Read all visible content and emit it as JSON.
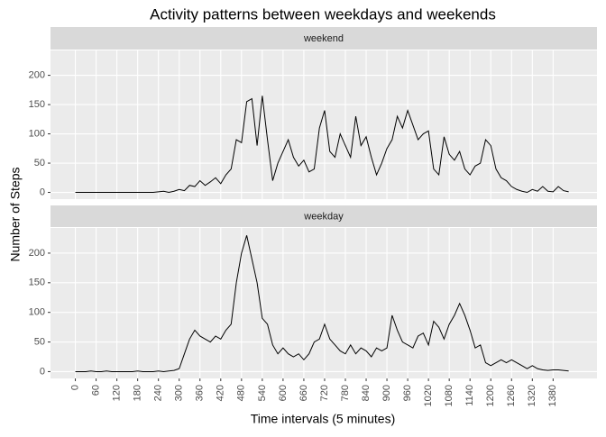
{
  "chart_data": {
    "type": "line",
    "title": "Activity patterns between weekdays and weekends",
    "x_label": "Time intervals (5 minutes)",
    "y_label": "Number of Steps",
    "color": "#000000",
    "grid": true,
    "xlim": [
      -71.75,
      1506.75
    ],
    "xticks": [
      0,
      60,
      120,
      180,
      240,
      300,
      360,
      420,
      480,
      540,
      600,
      660,
      720,
      780,
      840,
      900,
      960,
      1020,
      1080,
      1140,
      1200,
      1260,
      1320,
      1380
    ],
    "ylim": [
      -11.5,
      242.5
    ],
    "yticks": [
      0,
      50,
      100,
      150,
      200
    ],
    "x": [
      0,
      15,
      30,
      45,
      60,
      75,
      90,
      105,
      120,
      135,
      150,
      165,
      180,
      195,
      210,
      225,
      240,
      255,
      270,
      285,
      300,
      315,
      330,
      345,
      360,
      375,
      390,
      405,
      420,
      435,
      450,
      465,
      480,
      495,
      510,
      525,
      540,
      555,
      570,
      585,
      600,
      615,
      630,
      645,
      660,
      675,
      690,
      705,
      720,
      735,
      750,
      765,
      780,
      795,
      810,
      825,
      840,
      855,
      870,
      885,
      900,
      915,
      930,
      945,
      960,
      975,
      990,
      1005,
      1020,
      1035,
      1050,
      1065,
      1080,
      1095,
      1110,
      1125,
      1140,
      1155,
      1170,
      1185,
      1200,
      1215,
      1230,
      1245,
      1260,
      1275,
      1290,
      1305,
      1320,
      1335,
      1350,
      1365,
      1380,
      1395,
      1410,
      1425
    ],
    "facets": [
      {
        "label": "weekend",
        "values": [
          0,
          0,
          0,
          0,
          0,
          0,
          0,
          0,
          0,
          0,
          0,
          0,
          0,
          0,
          0,
          0,
          1,
          2,
          0,
          2,
          5,
          3,
          12,
          10,
          20,
          12,
          18,
          25,
          15,
          30,
          40,
          90,
          85,
          155,
          160,
          80,
          165,
          90,
          20,
          50,
          70,
          90,
          60,
          45,
          55,
          35,
          40,
          110,
          140,
          70,
          60,
          100,
          80,
          60,
          130,
          80,
          95,
          60,
          30,
          50,
          75,
          90,
          130,
          110,
          140,
          115,
          90,
          100,
          105,
          40,
          30,
          95,
          65,
          55,
          70,
          40,
          30,
          45,
          50,
          90,
          80,
          40,
          25,
          20,
          10,
          5,
          2,
          0,
          5,
          2,
          10,
          2,
          1,
          10,
          3,
          1
        ]
      },
      {
        "label": "weekday",
        "values": [
          0,
          0,
          0,
          1,
          0,
          0,
          1,
          0,
          0,
          0,
          0,
          0,
          1,
          0,
          0,
          0,
          1,
          0,
          1,
          2,
          5,
          30,
          55,
          70,
          60,
          55,
          50,
          60,
          55,
          70,
          80,
          150,
          200,
          230,
          190,
          150,
          90,
          80,
          45,
          30,
          40,
          30,
          25,
          30,
          20,
          30,
          50,
          55,
          80,
          55,
          45,
          35,
          30,
          45,
          30,
          40,
          35,
          25,
          40,
          35,
          40,
          95,
          70,
          50,
          45,
          40,
          60,
          65,
          45,
          85,
          75,
          55,
          80,
          95,
          115,
          95,
          70,
          40,
          45,
          15,
          10,
          15,
          20,
          15,
          20,
          15,
          10,
          5,
          10,
          5,
          3,
          2,
          3,
          3,
          2,
          1
        ]
      }
    ]
  }
}
